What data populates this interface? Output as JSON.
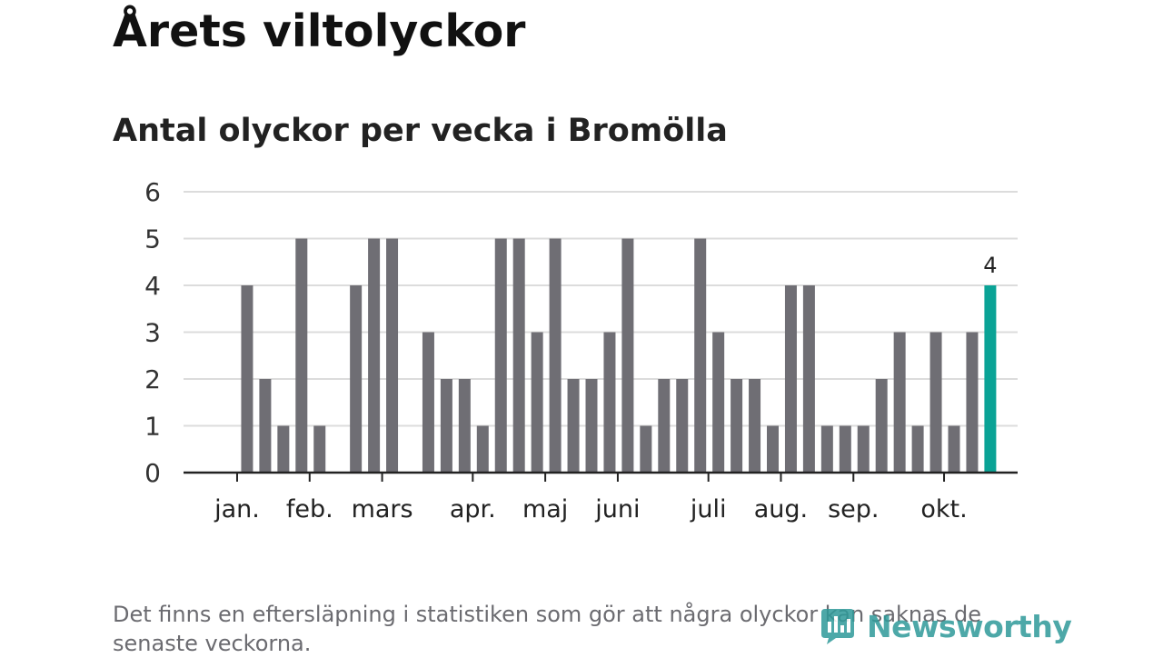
{
  "header": {
    "title": "Årets viltolyckor",
    "subtitle": "Antal olyckor per vecka i Bromölla"
  },
  "footer": {
    "note": "Det finns en eftersläpning i statistiken som gör att några olyckor kan saknas de senaste veckorna.",
    "brand": "Newsworthy"
  },
  "colors": {
    "bar": "#6f6e74",
    "highlight": "#0aa396",
    "grid": "#dcdcdc",
    "axis": "#222222"
  },
  "chart_data": {
    "type": "bar",
    "title": "Antal olyckor per vecka i Bromölla",
    "xlabel": "",
    "ylabel": "",
    "ylim": [
      0,
      6
    ],
    "yticks": [
      0,
      1,
      2,
      3,
      4,
      5,
      6
    ],
    "grid": true,
    "weeks": [
      1,
      2,
      3,
      4,
      5,
      6,
      7,
      8,
      9,
      10,
      11,
      12,
      13,
      14,
      15,
      16,
      17,
      18,
      19,
      20,
      21,
      22,
      23,
      24,
      25,
      26,
      27,
      28,
      29,
      30,
      31,
      32,
      33,
      34,
      35,
      36,
      37,
      38,
      39,
      40,
      41,
      42,
      43,
      44,
      45,
      46
    ],
    "values": [
      0,
      4,
      2,
      1,
      5,
      1,
      0,
      4,
      5,
      5,
      0,
      3,
      2,
      2,
      1,
      5,
      5,
      3,
      5,
      2,
      2,
      3,
      5,
      1,
      2,
      2,
      5,
      3,
      2,
      2,
      1,
      4,
      4,
      1,
      1,
      1,
      2,
      3,
      1,
      3,
      1,
      3,
      4,
      0,
      0,
      0
    ],
    "highlight_index": 42,
    "highlight_label": "4",
    "month_labels": [
      {
        "label": "jan.",
        "week": 1.5
      },
      {
        "label": "feb.",
        "week": 5.5
      },
      {
        "label": "mars",
        "week": 9.5
      },
      {
        "label": "apr.",
        "week": 14.5
      },
      {
        "label": "maj",
        "week": 18.5
      },
      {
        "label": "juni",
        "week": 22.5
      },
      {
        "label": "juli",
        "week": 27.5
      },
      {
        "label": "aug.",
        "week": 31.5
      },
      {
        "label": "sep.",
        "week": 35.5
      },
      {
        "label": "okt.",
        "week": 40.5
      }
    ]
  }
}
